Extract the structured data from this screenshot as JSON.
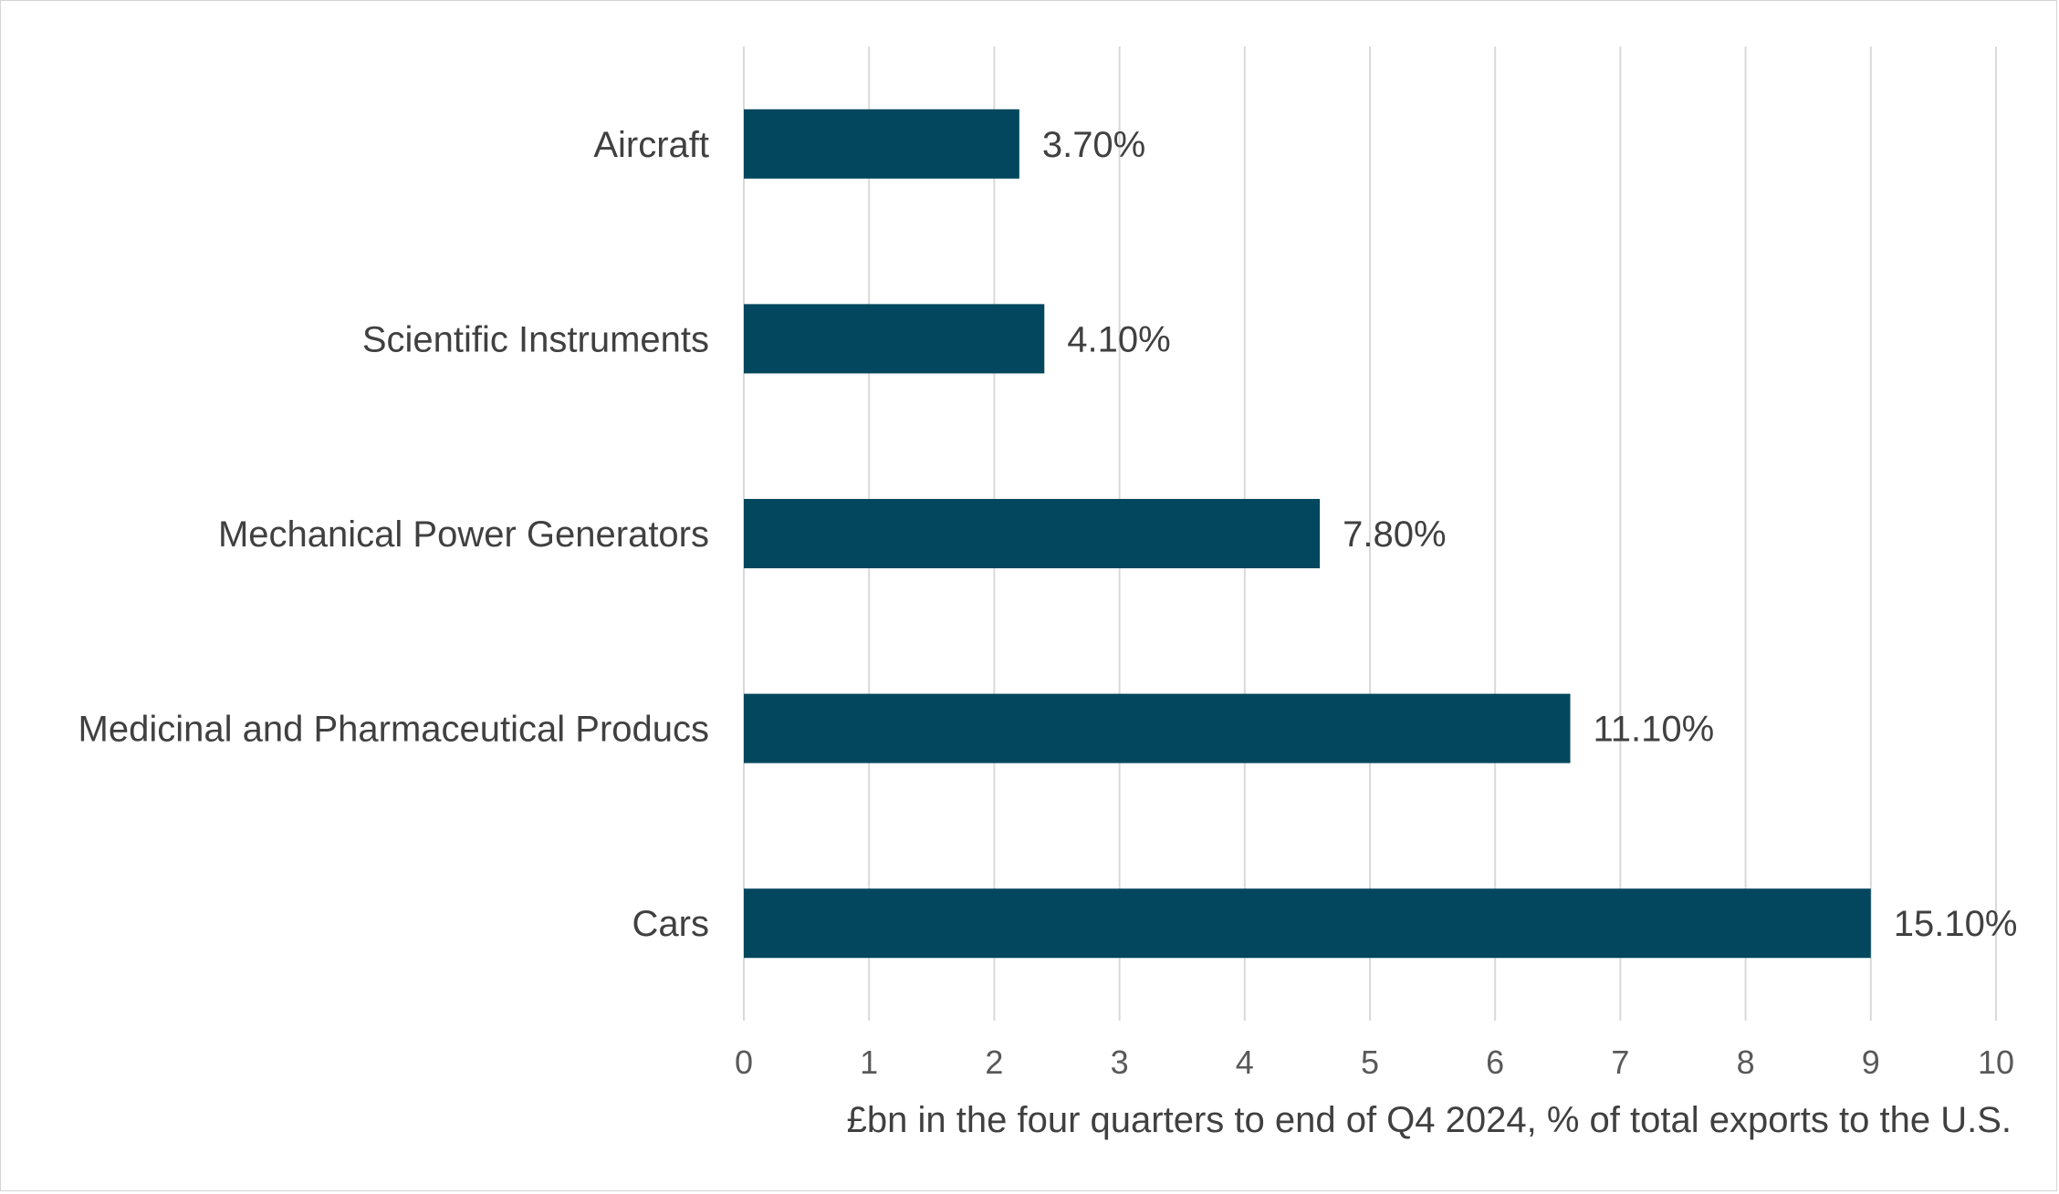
{
  "chart_data": {
    "type": "bar",
    "orientation": "horizontal",
    "title": "",
    "categories": [
      "Aircraft",
      "Scientific Instruments",
      "Mechanical Power Generators",
      "Medicinal and Pharmaceutical Producs",
      "Cars"
    ],
    "values": [
      2.2,
      2.4,
      4.6,
      6.6,
      9.0
    ],
    "data_labels": [
      "3.70%",
      "4.10%",
      "7.80%",
      "11.10%",
      "15.10%"
    ],
    "xlabel": "£bn in the four quarters to end of Q4 2024, % of total exports to the U.S.",
    "ylabel": "",
    "xlim": [
      0,
      10
    ],
    "xticks": [
      "0",
      "1",
      "2",
      "3",
      "4",
      "5",
      "6",
      "7",
      "8",
      "9",
      "10"
    ],
    "grid": "vertical",
    "bar_color": "#02475e",
    "grid_color": "#d9d9d9"
  }
}
